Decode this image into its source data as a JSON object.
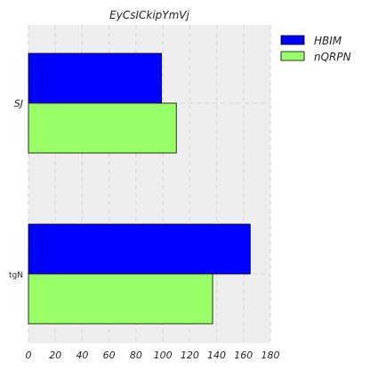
{
  "chart_data": {
    "type": "bar",
    "orientation": "horizontal",
    "title": "EyCsICkipYmVj",
    "categories": [
      "SJ",
      "tgN"
    ],
    "series": [
      {
        "name": "HBIM",
        "values": [
          99,
          165
        ],
        "color": "#0000ff"
      },
      {
        "name": "nQRPN",
        "values": [
          110,
          137
        ],
        "color": "#99ff66"
      }
    ],
    "xlim": [
      0,
      180
    ],
    "xticks": [
      0,
      20,
      40,
      60,
      80,
      100,
      120,
      140,
      160,
      180
    ],
    "grid": true,
    "legend_position": "top-right",
    "background": "#eeeeee"
  }
}
